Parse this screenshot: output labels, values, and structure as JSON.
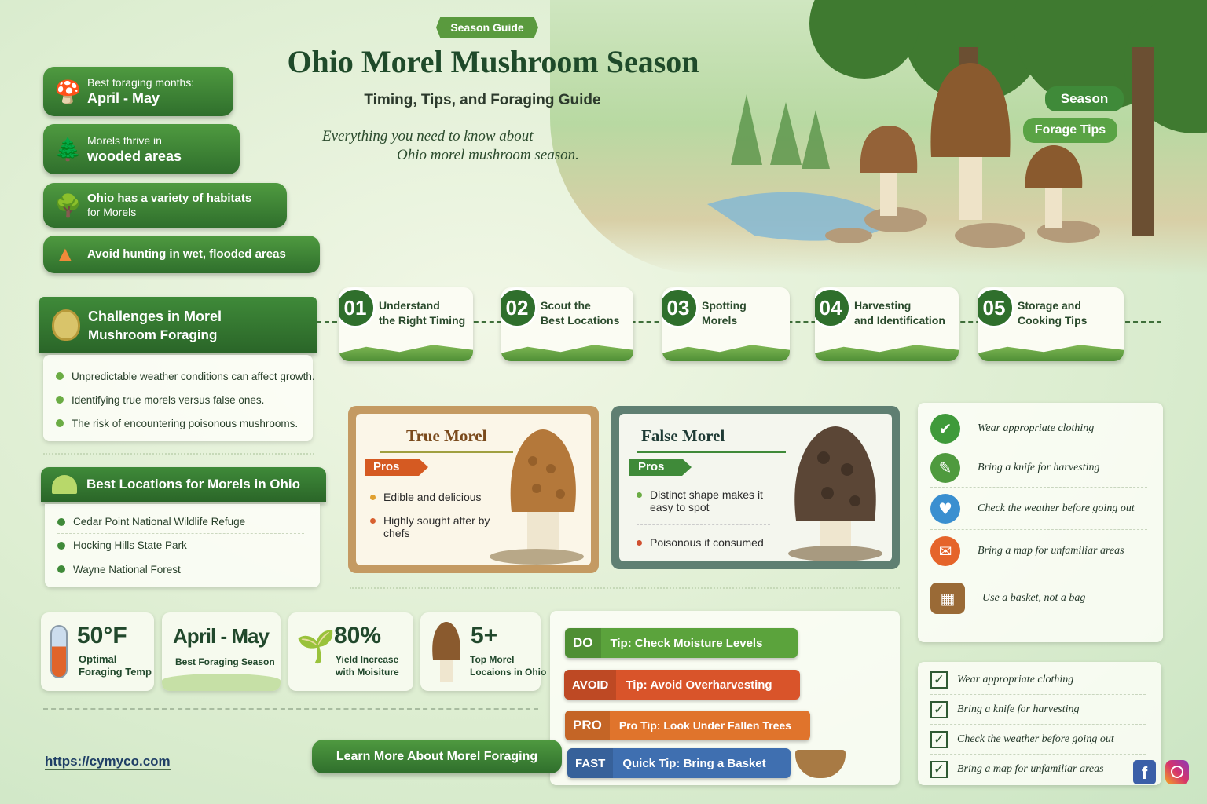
{
  "header": {
    "badge": "Season Guide",
    "title": "Ohio Morel Mushroom Season",
    "subtitle": "Timing, Tips, and Foraging Guide",
    "tagline_1": "Everything you need to know about",
    "tagline_2": "Ohio morel mushroom season."
  },
  "scene": {
    "tag_1": "Season",
    "tag_2": "Forage Tips"
  },
  "facts": [
    {
      "line1": "Best foraging months:",
      "line2": "April - May",
      "icon": "morel-icon"
    },
    {
      "line1": "Morels thrive in",
      "line2": "wooded areas",
      "icon": "tree-icon"
    },
    {
      "line1": "Ohio has a variety of habitats",
      "line2": "for Morels",
      "icon": "habitat-icon"
    },
    {
      "line1": "Avoid hunting in wet, flooded areas",
      "line2": "",
      "icon": "warning-icon"
    }
  ],
  "challenges": {
    "title_1": "Challenges in Morel",
    "title_2": "Mushroom Foraging",
    "items": [
      "Unpredictable weather conditions can affect growth.",
      "Identifying true morels versus false ones.",
      "The risk of encountering poisonous mushrooms."
    ]
  },
  "locations": {
    "title": "Best Locations for Morels in Ohio",
    "items": [
      "Cedar Point National Wildlife Refuge",
      "Hocking Hills State Park",
      "Wayne National Forest"
    ]
  },
  "steps": [
    {
      "num": "01",
      "line1": "Understand",
      "line2": "the Right Timing"
    },
    {
      "num": "02",
      "line1": "Scout the",
      "line2": "Best Locations"
    },
    {
      "num": "03",
      "line1": "Spotting",
      "line2": "Morels"
    },
    {
      "num": "04",
      "line1": "Harvesting",
      "line2": "and Identification"
    },
    {
      "num": "05",
      "line1": "Storage and",
      "line2": "Cooking Tips"
    }
  ],
  "true_morel": {
    "title": "True Morel",
    "tag": "Pros",
    "items": [
      "Edible and delicious",
      "Highly sought after by chefs"
    ]
  },
  "false_morel": {
    "title": "False Morel",
    "tag": "Pros",
    "items": [
      "Distinct shape makes it easy to spot",
      "Poisonous if consumed"
    ]
  },
  "checklist": [
    {
      "label": "Wear appropriate clothing",
      "icon": "check-icon",
      "color": "#3f9a3a"
    },
    {
      "label": "Bring a knife for harvesting",
      "icon": "knife-icon",
      "color": "#4f9a3e"
    },
    {
      "label": "Check the weather before going out",
      "icon": "heart-icon",
      "color": "#3a8fd0"
    },
    {
      "label": "Bring a map for unfamiliar areas",
      "icon": "mail-icon",
      "color": "#e5642a"
    },
    {
      "label": "Use a basket, not a bag",
      "icon": "basket-icon",
      "color": "#9a6a36"
    }
  ],
  "stats": [
    {
      "value": "50°F",
      "label_1": "Optimal",
      "label_2": "Foraging Temp"
    },
    {
      "value": "April - May",
      "label_1": "Best Foraging Season",
      "label_2": ""
    },
    {
      "value": "80%",
      "label_1": "Yield Increase",
      "label_2": "with Moisiture"
    },
    {
      "value": "5+",
      "label_1": "Top Morel",
      "label_2": "Locaions in Ohio"
    }
  ],
  "tips": [
    {
      "key": "DO",
      "text": "Tip: Check Moisture Levels",
      "color": "#5ba33c"
    },
    {
      "key": "AVOID",
      "text": "Tip: Avoid Overharvesting",
      "color": "#d9542a"
    },
    {
      "key": "PRO",
      "text": "Pro Tip: Look Under Fallen Trees",
      "color": "#e0742c"
    },
    {
      "key": "FAST",
      "text": "Quick Tip: Bring a Basket",
      "color": "#3f6fb0"
    }
  ],
  "footer": {
    "url": "https://cymyco.com",
    "cta": "Learn More About Morel Foraging"
  },
  "checklist_2": [
    "Wear appropriate clothing",
    "Bring a knife for harvesting",
    "Check the weather before going out",
    "Bring a map for unfamiliar areas"
  ],
  "social": [
    {
      "icon": "facebook-icon",
      "color": "#3b5fa8"
    },
    {
      "icon": "instagram-icon",
      "color": "#d6336c"
    }
  ]
}
